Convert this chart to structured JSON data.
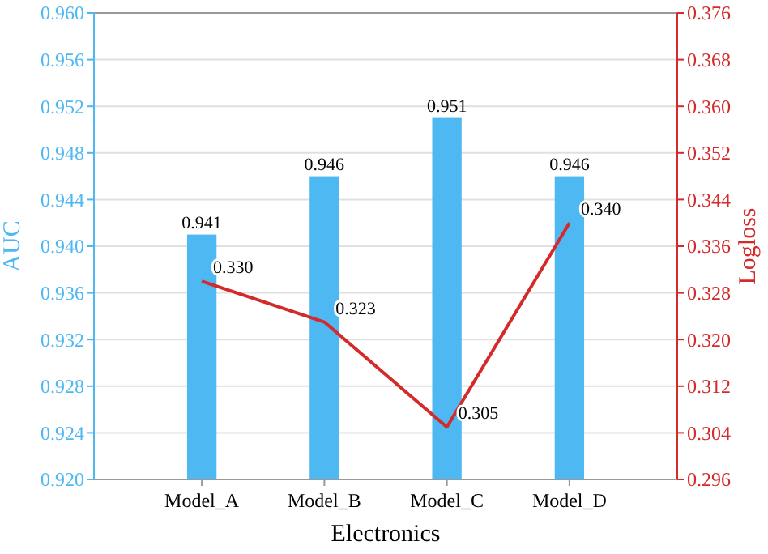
{
  "chart_data": {
    "type": "bar",
    "categories": [
      "Model_A",
      "Model_B",
      "Model_C",
      "Model_D"
    ],
    "xlabel": "Electronics",
    "ylabel": "AUC",
    "y2label": "Logloss",
    "series": [
      {
        "color": "#4db8f2",
        "values": [
          0.941,
          0.946,
          0.951,
          0.946
        ],
        "value_labels": [
          "0.941",
          "0.946",
          "0.951",
          "0.946"
        ]
      },
      {
        "type": "line",
        "axis": "y2",
        "color": "#d42a2a",
        "values": [
          0.33,
          0.323,
          0.305,
          0.34
        ],
        "value_labels": [
          "0.330",
          "0.323",
          "0.305",
          "0.340"
        ]
      }
    ],
    "ylim": [
      0.92,
      0.96
    ],
    "yticks": [
      {
        "value": 0.92,
        "label": "0.920"
      },
      {
        "value": 0.924,
        "label": "0.924"
      },
      {
        "value": 0.928,
        "label": "0.928"
      },
      {
        "value": 0.932,
        "label": "0.932"
      },
      {
        "value": 0.936,
        "label": "0.936"
      },
      {
        "value": 0.94,
        "label": "0.940"
      },
      {
        "value": 0.944,
        "label": "0.944"
      },
      {
        "value": 0.948,
        "label": "0.948"
      },
      {
        "value": 0.952,
        "label": "0.952"
      },
      {
        "value": 0.956,
        "label": "0.956"
      },
      {
        "value": 0.96,
        "label": "0.960"
      }
    ],
    "y2lim": [
      0.296,
      0.376
    ],
    "y2ticks": [
      {
        "value": 0.296,
        "label": "0.296"
      },
      {
        "value": 0.304,
        "label": "0.304"
      },
      {
        "value": 0.312,
        "label": "0.312"
      },
      {
        "value": 0.32,
        "label": "0.320"
      },
      {
        "value": 0.328,
        "label": "0.328"
      },
      {
        "value": 0.336,
        "label": "0.336"
      },
      {
        "value": 0.344,
        "label": "0.344"
      },
      {
        "value": 0.352,
        "label": "0.352"
      },
      {
        "value": 0.36,
        "label": "0.360"
      },
      {
        "value": 0.368,
        "label": "0.368"
      },
      {
        "value": 0.376,
        "label": "0.376"
      }
    ],
    "grid": "y",
    "marker": "none",
    "line_style": "solid"
  }
}
